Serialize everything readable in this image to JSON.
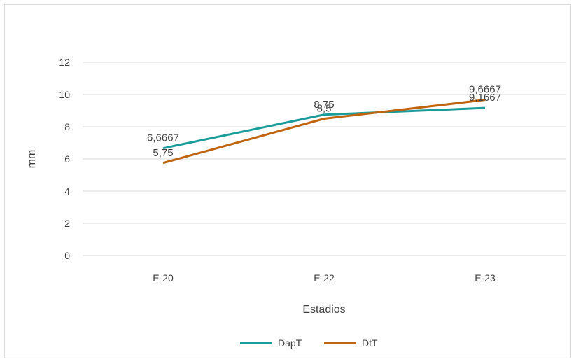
{
  "chart_data": {
    "type": "line",
    "categories": [
      "E-20",
      "E-22",
      "E-23"
    ],
    "series": [
      {
        "name": "DapT",
        "values": [
          6.6667,
          8.75,
          9.1667
        ],
        "labels": [
          "6,6667",
          "8,75",
          "9,1667"
        ],
        "color": "#1a9c9a"
      },
      {
        "name": "DtT",
        "values": [
          5.75,
          8.5,
          9.6667
        ],
        "labels": [
          "5,75",
          "8,5",
          "9,6667"
        ],
        "color": "#c0640f"
      }
    ],
    "title": "",
    "xlabel": "Estadios",
    "ylabel": "mm",
    "ylim": [
      0,
      12
    ],
    "yticks": [
      "0",
      "2",
      "4",
      "6",
      "8",
      "10",
      "12"
    ],
    "grid": true,
    "legend": "bottom"
  }
}
